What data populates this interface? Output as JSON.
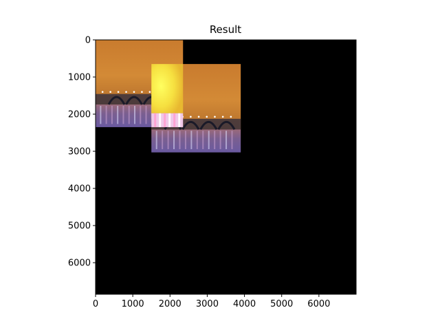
{
  "chart_data": {
    "type": "image",
    "title": "Result",
    "xlim": [
      0,
      7000
    ],
    "ylim": [
      6850,
      0
    ],
    "x_ticks": [
      0,
      1000,
      2000,
      3000,
      4000,
      5000,
      6000
    ],
    "y_ticks": [
      0,
      1000,
      2000,
      3000,
      4000,
      5000,
      6000
    ],
    "x_tick_labels": [
      "0",
      "1000",
      "2000",
      "3000",
      "4000",
      "5000",
      "6000"
    ],
    "y_tick_labels": [
      "0",
      "1000",
      "2000",
      "3000",
      "4000",
      "5000",
      "6000"
    ],
    "background_color": "#000000",
    "images": [
      {
        "name": "photo-a",
        "x_range": [
          0,
          2350
        ],
        "y_range": [
          0,
          2350
        ]
      },
      {
        "name": "photo-b",
        "x_range": [
          1500,
          3900
        ],
        "y_range": [
          650,
          3030
        ]
      }
    ],
    "overlap": {
      "x_range": [
        1500,
        2350
      ],
      "y_range": [
        650,
        2350
      ]
    }
  }
}
